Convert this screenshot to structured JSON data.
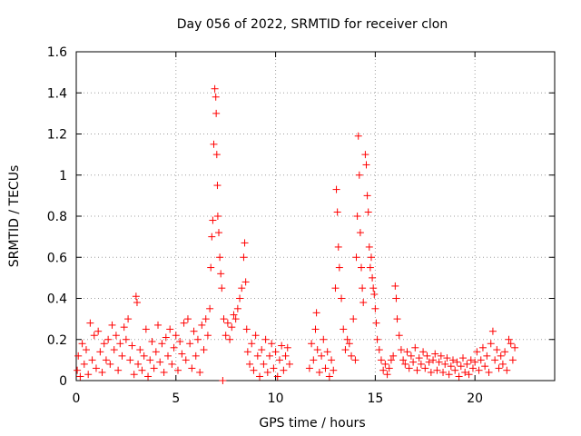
{
  "chart_data": {
    "type": "scatter",
    "title": "Day 056 of 2022, SRMTID for receiver clon",
    "xlabel": "GPS time / hours",
    "ylabel": "SRMTID / TECUs",
    "xlim": [
      0,
      24
    ],
    "ylim": [
      0,
      1.6
    ],
    "xticks": [
      "0",
      "5",
      "10",
      "15",
      "20"
    ],
    "yticks": [
      "0",
      "0.2",
      "0.4",
      "0.6",
      "0.8",
      "1",
      "1.2",
      "1.4",
      "1.6"
    ],
    "grid": true,
    "marker": "+",
    "color": "#ff0000",
    "series": [
      {
        "name": "SRMTID",
        "points": [
          [
            0.05,
            0.05
          ],
          [
            0.1,
            0.12
          ],
          [
            0.2,
            0.02
          ],
          [
            0.3,
            0.18
          ],
          [
            0.4,
            0.08
          ],
          [
            0.5,
            0.15
          ],
          [
            0.6,
            0.03
          ],
          [
            0.7,
            0.28
          ],
          [
            0.8,
            0.1
          ],
          [
            0.9,
            0.22
          ],
          [
            1.0,
            0.06
          ],
          [
            1.1,
            0.24
          ],
          [
            1.2,
            0.14
          ],
          [
            1.3,
            0.04
          ],
          [
            1.4,
            0.18
          ],
          [
            1.5,
            0.1
          ],
          [
            1.6,
            0.2
          ],
          [
            1.7,
            0.08
          ],
          [
            1.8,
            0.27
          ],
          [
            1.9,
            0.15
          ],
          [
            2.0,
            0.22
          ],
          [
            2.1,
            0.05
          ],
          [
            2.2,
            0.18
          ],
          [
            2.3,
            0.12
          ],
          [
            2.4,
            0.26
          ],
          [
            2.5,
            0.2
          ],
          [
            2.6,
            0.3
          ],
          [
            2.7,
            0.1
          ],
          [
            2.8,
            0.17
          ],
          [
            2.9,
            0.03
          ],
          [
            3.0,
            0.41
          ],
          [
            3.05,
            0.38
          ],
          [
            3.1,
            0.08
          ],
          [
            3.2,
            0.15
          ],
          [
            3.3,
            0.05
          ],
          [
            3.4,
            0.12
          ],
          [
            3.5,
            0.25
          ],
          [
            3.6,
            0.02
          ],
          [
            3.7,
            0.1
          ],
          [
            3.8,
            0.19
          ],
          [
            3.9,
            0.06
          ],
          [
            4.0,
            0.14
          ],
          [
            4.1,
            0.27
          ],
          [
            4.2,
            0.09
          ],
          [
            4.3,
            0.18
          ],
          [
            4.4,
            0.04
          ],
          [
            4.5,
            0.21
          ],
          [
            4.6,
            0.12
          ],
          [
            4.7,
            0.25
          ],
          [
            4.8,
            0.08
          ],
          [
            4.9,
            0.16
          ],
          [
            5.0,
            0.22
          ],
          [
            5.1,
            0.05
          ],
          [
            5.2,
            0.19
          ],
          [
            5.3,
            0.13
          ],
          [
            5.4,
            0.28
          ],
          [
            5.5,
            0.1
          ],
          [
            5.6,
            0.3
          ],
          [
            5.7,
            0.18
          ],
          [
            5.8,
            0.06
          ],
          [
            5.9,
            0.24
          ],
          [
            6.0,
            0.12
          ],
          [
            6.1,
            0.2
          ],
          [
            6.2,
            0.04
          ],
          [
            6.3,
            0.27
          ],
          [
            6.4,
            0.15
          ],
          [
            6.5,
            0.3
          ],
          [
            6.6,
            0.22
          ],
          [
            6.7,
            0.35
          ],
          [
            6.75,
            0.55
          ],
          [
            6.8,
            0.7
          ],
          [
            6.85,
            0.78
          ],
          [
            6.9,
            1.15
          ],
          [
            6.95,
            1.42
          ],
          [
            7.0,
            1.38
          ],
          [
            7.02,
            1.3
          ],
          [
            7.05,
            1.1
          ],
          [
            7.08,
            0.95
          ],
          [
            7.1,
            0.8
          ],
          [
            7.15,
            0.72
          ],
          [
            7.2,
            0.6
          ],
          [
            7.25,
            0.52
          ],
          [
            7.3,
            0.45
          ],
          [
            7.35,
            0.0
          ],
          [
            7.4,
            0.3
          ],
          [
            7.5,
            0.22
          ],
          [
            7.6,
            0.28
          ],
          [
            7.7,
            0.2
          ],
          [
            7.8,
            0.26
          ],
          [
            7.9,
            0.32
          ],
          [
            8.0,
            0.3
          ],
          [
            8.1,
            0.35
          ],
          [
            8.2,
            0.4
          ],
          [
            8.3,
            0.45
          ],
          [
            8.4,
            0.6
          ],
          [
            8.45,
            0.67
          ],
          [
            8.5,
            0.48
          ],
          [
            8.55,
            0.25
          ],
          [
            8.6,
            0.14
          ],
          [
            8.7,
            0.08
          ],
          [
            8.8,
            0.18
          ],
          [
            8.9,
            0.05
          ],
          [
            9.0,
            0.22
          ],
          [
            9.1,
            0.12
          ],
          [
            9.2,
            0.02
          ],
          [
            9.3,
            0.15
          ],
          [
            9.4,
            0.08
          ],
          [
            9.5,
            0.2
          ],
          [
            9.6,
            0.04
          ],
          [
            9.7,
            0.12
          ],
          [
            9.8,
            0.18
          ],
          [
            9.9,
            0.06
          ],
          [
            10.0,
            0.14
          ],
          [
            10.1,
            0.02
          ],
          [
            10.2,
            0.1
          ],
          [
            10.3,
            0.17
          ],
          [
            10.4,
            0.05
          ],
          [
            10.5,
            0.12
          ],
          [
            10.6,
            0.16
          ],
          [
            10.7,
            0.08
          ],
          [
            11.7,
            0.06
          ],
          [
            11.8,
            0.18
          ],
          [
            11.9,
            0.1
          ],
          [
            12.0,
            0.25
          ],
          [
            12.05,
            0.33
          ],
          [
            12.1,
            0.15
          ],
          [
            12.2,
            0.04
          ],
          [
            12.3,
            0.12
          ],
          [
            12.4,
            0.2
          ],
          [
            12.5,
            0.06
          ],
          [
            12.6,
            0.14
          ],
          [
            12.7,
            0.02
          ],
          [
            12.8,
            0.1
          ],
          [
            12.9,
            0.05
          ],
          [
            13.0,
            0.45
          ],
          [
            13.05,
            0.93
          ],
          [
            13.1,
            0.82
          ],
          [
            13.15,
            0.65
          ],
          [
            13.2,
            0.55
          ],
          [
            13.3,
            0.4
          ],
          [
            13.4,
            0.25
          ],
          [
            13.5,
            0.15
          ],
          [
            13.6,
            0.2
          ],
          [
            13.7,
            0.18
          ],
          [
            13.8,
            0.12
          ],
          [
            13.9,
            0.3
          ],
          [
            14.0,
            0.1
          ],
          [
            14.05,
            0.6
          ],
          [
            14.1,
            0.8
          ],
          [
            14.15,
            1.19
          ],
          [
            14.2,
            1.0
          ],
          [
            14.25,
            0.72
          ],
          [
            14.3,
            0.55
          ],
          [
            14.35,
            0.45
          ],
          [
            14.4,
            0.38
          ],
          [
            14.5,
            1.1
          ],
          [
            14.55,
            1.05
          ],
          [
            14.6,
            0.9
          ],
          [
            14.65,
            0.82
          ],
          [
            14.7,
            0.65
          ],
          [
            14.75,
            0.55
          ],
          [
            14.8,
            0.6
          ],
          [
            14.85,
            0.5
          ],
          [
            14.9,
            0.45
          ],
          [
            14.95,
            0.42
          ],
          [
            15.0,
            0.35
          ],
          [
            15.05,
            0.28
          ],
          [
            15.1,
            0.2
          ],
          [
            15.2,
            0.15
          ],
          [
            15.3,
            0.1
          ],
          [
            15.4,
            0.05
          ],
          [
            15.5,
            0.08
          ],
          [
            15.6,
            0.03
          ],
          [
            15.7,
            0.06
          ],
          [
            15.8,
            0.1
          ],
          [
            15.9,
            0.12
          ],
          [
            16.0,
            0.46
          ],
          [
            16.05,
            0.4
          ],
          [
            16.1,
            0.3
          ],
          [
            16.2,
            0.22
          ],
          [
            16.3,
            0.15
          ],
          [
            16.4,
            0.1
          ],
          [
            16.5,
            0.08
          ],
          [
            16.6,
            0.14
          ],
          [
            16.7,
            0.06
          ],
          [
            16.8,
            0.12
          ],
          [
            16.9,
            0.09
          ],
          [
            17.0,
            0.16
          ],
          [
            17.1,
            0.05
          ],
          [
            17.2,
            0.11
          ],
          [
            17.3,
            0.08
          ],
          [
            17.4,
            0.14
          ],
          [
            17.5,
            0.06
          ],
          [
            17.6,
            0.12
          ],
          [
            17.7,
            0.09
          ],
          [
            17.8,
            0.04
          ],
          [
            17.9,
            0.1
          ],
          [
            18.0,
            0.13
          ],
          [
            18.1,
            0.05
          ],
          [
            18.2,
            0.09
          ],
          [
            18.3,
            0.12
          ],
          [
            18.4,
            0.04
          ],
          [
            18.5,
            0.08
          ],
          [
            18.6,
            0.11
          ],
          [
            18.7,
            0.03
          ],
          [
            18.8,
            0.07
          ],
          [
            18.9,
            0.1
          ],
          [
            19.0,
            0.05
          ],
          [
            19.1,
            0.09
          ],
          [
            19.2,
            0.02
          ],
          [
            19.3,
            0.07
          ],
          [
            19.4,
            0.11
          ],
          [
            19.5,
            0.04
          ],
          [
            19.6,
            0.08
          ],
          [
            19.7,
            0.03
          ],
          [
            19.8,
            0.1
          ],
          [
            19.9,
            0.06
          ],
          [
            20.0,
            0.09
          ],
          [
            20.1,
            0.14
          ],
          [
            20.2,
            0.05
          ],
          [
            20.3,
            0.1
          ],
          [
            20.4,
            0.16
          ],
          [
            20.5,
            0.07
          ],
          [
            20.6,
            0.12
          ],
          [
            20.7,
            0.04
          ],
          [
            20.8,
            0.18
          ],
          [
            20.9,
            0.24
          ],
          [
            21.0,
            0.1
          ],
          [
            21.1,
            0.15
          ],
          [
            21.2,
            0.06
          ],
          [
            21.3,
            0.12
          ],
          [
            21.4,
            0.08
          ],
          [
            21.5,
            0.14
          ],
          [
            21.6,
            0.05
          ],
          [
            21.7,
            0.2
          ],
          [
            21.8,
            0.18
          ],
          [
            21.9,
            0.1
          ],
          [
            22.0,
            0.16
          ]
        ]
      }
    ]
  }
}
